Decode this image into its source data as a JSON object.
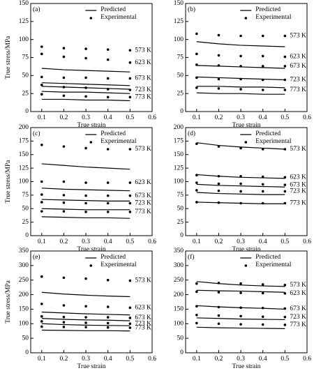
{
  "chart_data": [
    {
      "type": "line",
      "label": "(a)",
      "legend": [
        "Predicted",
        "Experimental"
      ],
      "xlabel": "True strain",
      "ylabel": "True stress/MPa",
      "x": [
        0.1,
        0.2,
        0.3,
        0.4,
        0.5
      ],
      "xlim": [
        0.05,
        0.6
      ],
      "xticks": [
        0.1,
        0.2,
        0.3,
        0.4,
        0.5,
        0.6
      ],
      "ylim": [
        0,
        150
      ],
      "yticks": [
        0,
        25,
        50,
        75,
        100,
        125,
        150
      ],
      "series": [
        {
          "name": "573 K",
          "predicted": [
            60,
            58,
            57,
            56,
            55
          ],
          "experimental": [
            90,
            88,
            87,
            86,
            85
          ]
        },
        {
          "name": "623 K",
          "predicted": [
            40,
            39,
            38,
            37,
            36
          ],
          "experimental": [
            80,
            76,
            74,
            72,
            68
          ]
        },
        {
          "name": "673 K",
          "predicted": [
            35,
            34,
            33,
            32,
            31
          ],
          "experimental": [
            48,
            47,
            47,
            46,
            46
          ]
        },
        {
          "name": "723 K",
          "predicted": [
            28,
            27,
            27,
            26,
            25
          ],
          "experimental": [
            37,
            34,
            33,
            31,
            30
          ]
        },
        {
          "name": "773 K",
          "predicted": [
            17,
            17,
            16,
            16,
            15
          ],
          "experimental": [
            24,
            22,
            21,
            20,
            20
          ]
        }
      ]
    },
    {
      "type": "line",
      "label": "(b)",
      "legend": [
        "Predicted",
        "Experimental"
      ],
      "xlabel": "True strain",
      "x": [
        0.1,
        0.2,
        0.3,
        0.4,
        0.5
      ],
      "xlim": [
        0.05,
        0.6
      ],
      "xticks": [
        0.1,
        0.2,
        0.3,
        0.4,
        0.5,
        0.6
      ],
      "ylim": [
        0,
        150
      ],
      "yticks": [
        0,
        25,
        50,
        75,
        100,
        125,
        150
      ],
      "series": [
        {
          "name": "573 K",
          "predicted": [
            97,
            94,
            92,
            91,
            90
          ],
          "experimental": [
            108,
            106,
            105,
            105,
            105
          ]
        },
        {
          "name": "623 K",
          "predicted": [
            64,
            63,
            62,
            61,
            60
          ],
          "experimental": [
            80,
            78,
            77,
            77,
            76
          ]
        },
        {
          "name": "673 K",
          "predicted": [
            48,
            47,
            46,
            45,
            44
          ],
          "experimental": [
            65,
            64,
            63,
            63,
            63
          ]
        },
        {
          "name": "723 K",
          "predicted": [
            35,
            35,
            34,
            34,
            33
          ],
          "experimental": [
            47,
            45,
            45,
            44,
            44
          ]
        },
        {
          "name": "773 K",
          "predicted": [
            26,
            25,
            25,
            24,
            24
          ],
          "experimental": [
            33,
            32,
            31,
            30,
            30
          ]
        }
      ]
    },
    {
      "type": "line",
      "label": "(c)",
      "legend": [
        "Predicted",
        "Experimental"
      ],
      "xlabel": "True strain",
      "ylabel": "True stress/MPa",
      "x": [
        0.1,
        0.2,
        0.3,
        0.4,
        0.5
      ],
      "xlim": [
        0.05,
        0.6
      ],
      "xticks": [
        0.1,
        0.2,
        0.3,
        0.4,
        0.5,
        0.6
      ],
      "ylim": [
        0,
        200
      ],
      "yticks": [
        0,
        25,
        50,
        75,
        100,
        125,
        150,
        175,
        200
      ],
      "series": [
        {
          "name": "573 K",
          "predicted": [
            133,
            130,
            127,
            125,
            123
          ],
          "experimental": [
            168,
            165,
            162,
            160,
            160
          ]
        },
        {
          "name": "623 K",
          "predicted": [
            88,
            86,
            85,
            84,
            83
          ],
          "experimental": [
            100,
            100,
            98,
            98,
            98
          ]
        },
        {
          "name": "673 K",
          "predicted": [
            67,
            66,
            65,
            64,
            64
          ],
          "experimental": [
            76,
            75,
            74,
            74,
            74
          ]
        },
        {
          "name": "723 K",
          "predicted": [
            50,
            49,
            48,
            48,
            48
          ],
          "experimental": [
            62,
            61,
            60,
            60,
            60
          ]
        },
        {
          "name": "773 K",
          "predicted": [
            35,
            34,
            33,
            33,
            32
          ],
          "experimental": [
            45,
            45,
            44,
            44,
            44
          ]
        }
      ]
    },
    {
      "type": "line",
      "label": "(d)",
      "legend": [
        "Predicted",
        "Experimental"
      ],
      "xlabel": "True strain",
      "x": [
        0.1,
        0.2,
        0.3,
        0.4,
        0.5
      ],
      "xlim": [
        0.05,
        0.6
      ],
      "xticks": [
        0.1,
        0.2,
        0.3,
        0.4,
        0.5,
        0.6
      ],
      "ylim": [
        0,
        200
      ],
      "yticks": [
        0,
        25,
        50,
        75,
        100,
        125,
        150,
        175,
        200
      ],
      "series": [
        {
          "name": "573 K",
          "predicted": [
            172,
            167,
            164,
            162,
            160
          ],
          "experimental": [
            170,
            165,
            162,
            160,
            160
          ]
        },
        {
          "name": "623 K",
          "predicted": [
            113,
            110,
            108,
            107,
            106
          ],
          "experimental": [
            112,
            110,
            110,
            109,
            108
          ]
        },
        {
          "name": "673 K",
          "predicted": [
            95,
            93,
            92,
            91,
            90
          ],
          "experimental": [
            98,
            96,
            96,
            95,
            94
          ]
        },
        {
          "name": "723 K",
          "predicted": [
            80,
            78,
            77,
            76,
            76
          ],
          "experimental": [
            84,
            83,
            82,
            82,
            82
          ]
        },
        {
          "name": "773 K",
          "predicted": [
            62,
            61,
            60,
            59,
            59
          ],
          "experimental": [
            62,
            61,
            60,
            60,
            60
          ]
        }
      ]
    },
    {
      "type": "line",
      "label": "(e)",
      "legend": [
        "Predicted",
        "Experimental"
      ],
      "xlabel": "True strain",
      "ylabel": "True stress/MPa",
      "x": [
        0.1,
        0.2,
        0.3,
        0.4,
        0.5
      ],
      "xlim": [
        0.05,
        0.6
      ],
      "xticks": [
        0.1,
        0.2,
        0.3,
        0.4,
        0.5,
        0.6
      ],
      "ylim": [
        0,
        350
      ],
      "yticks": [
        0,
        50,
        100,
        150,
        200,
        250,
        300,
        350
      ],
      "series": [
        {
          "name": "573 K",
          "predicted": [
            208,
            202,
            198,
            195,
            193
          ],
          "experimental": [
            262,
            258,
            255,
            250,
            248
          ]
        },
        {
          "name": "623 K",
          "predicted": [
            140,
            137,
            134,
            132,
            130
          ],
          "experimental": [
            168,
            163,
            160,
            158,
            155
          ]
        },
        {
          "name": "673 K",
          "predicted": [
            118,
            115,
            113,
            112,
            110
          ],
          "experimental": [
            125,
            123,
            122,
            122,
            120
          ]
        },
        {
          "name": "723 K",
          "predicted": [
            100,
            97,
            95,
            94,
            93
          ],
          "experimental": [
            108,
            105,
            103,
            102,
            100
          ]
        },
        {
          "name": "773 K",
          "predicted": [
            78,
            77,
            76,
            76,
            75
          ],
          "experimental": [
            90,
            89,
            88,
            87,
            86
          ]
        }
      ]
    },
    {
      "type": "line",
      "label": "(f)",
      "legend": [
        "Predicted",
        "Experimental"
      ],
      "xlabel": "True strain",
      "x": [
        0.1,
        0.2,
        0.3,
        0.4,
        0.5
      ],
      "xlim": [
        0.05,
        0.6
      ],
      "xticks": [
        0.1,
        0.2,
        0.3,
        0.4,
        0.5,
        0.6
      ],
      "ylim": [
        0,
        350
      ],
      "yticks": [
        0,
        50,
        100,
        150,
        200,
        250,
        300,
        350
      ],
      "series": [
        {
          "name": "573 K",
          "predicted": [
            245,
            238,
            233,
            230,
            228
          ],
          "experimental": [
            238,
            240,
            238,
            235,
            233
          ]
        },
        {
          "name": "623 K",
          "predicted": [
            215,
            213,
            212,
            210,
            208
          ],
          "experimental": [
            210,
            208,
            206,
            205,
            204
          ]
        },
        {
          "name": "673 K",
          "predicted": [
            162,
            158,
            155,
            153,
            150
          ],
          "experimental": [
            160,
            157,
            155,
            154,
            152
          ]
        },
        {
          "name": "723 K",
          "predicted": [
            120,
            118,
            116,
            115,
            114
          ],
          "experimental": [
            130,
            128,
            126,
            124,
            123
          ]
        },
        {
          "name": "773 K",
          "predicted": [
            88,
            86,
            85,
            84,
            83
          ],
          "experimental": [
            102,
            100,
            98,
            97,
            96
          ]
        }
      ]
    }
  ]
}
